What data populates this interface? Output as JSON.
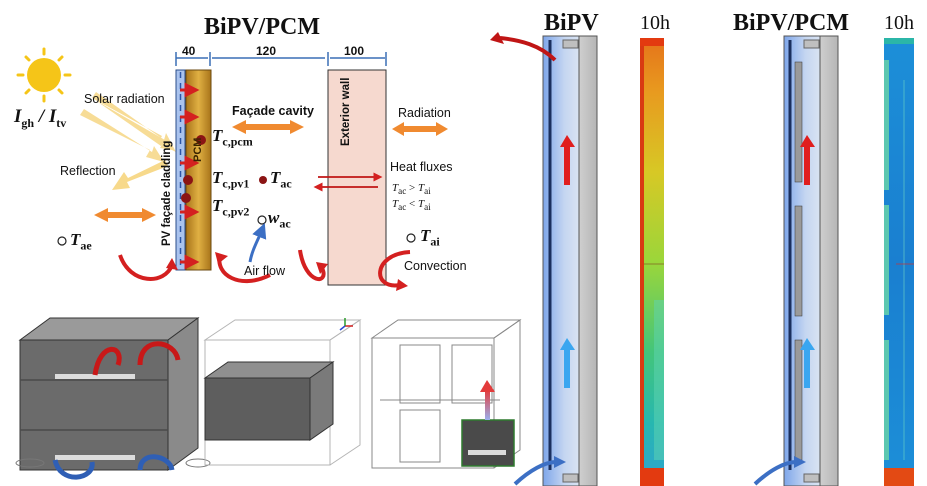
{
  "titles": {
    "left": "BiPV/PCM",
    "middle": "BiPV",
    "middle_time": "10h",
    "right": "BiPV/PCM",
    "right_time": "10h"
  },
  "dimensions": {
    "d1": "40",
    "d2": "120",
    "d3": "100"
  },
  "labels": {
    "solar_radiation": "Solar radiation",
    "facade_cavity": "Façade cavity",
    "radiation": "Radiation",
    "reflection": "Reflection",
    "heat_fluxes": "Heat fluxes",
    "air_flow": "Air flow",
    "convection": "Convection",
    "pcm": "PCM",
    "pv_cladding": "PV façade cladding",
    "exterior_wall": "Exterior wall"
  },
  "symbols": {
    "irradiance_main": "I",
    "irradiance_sub1": "gh",
    "irradiance_sep": " / ",
    "irradiance_sub2": "tv",
    "tcpcm_main": "T",
    "tcpcm_sub": "c,pcm",
    "tcpv1_main": "T",
    "tcpv1_sub": "c,pv1",
    "tcpv2_main": "T",
    "tcpv2_sub": "c,pv2",
    "tac_main": "T",
    "tac_sub": "ac",
    "wac_main": "w",
    "wac_sub": "ac",
    "tae_main": "T",
    "tae_sub": "ae",
    "tai_main": "T",
    "tai_sub": "ai",
    "cond1_a": "T",
    "cond1_a_sub": "ac",
    "cond1_op": " > ",
    "cond1_b": "T",
    "cond1_b_sub": "ai",
    "cond2_a": "T",
    "cond2_a_sub": "ac",
    "cond2_op": " < ",
    "cond2_b": "T",
    "cond2_b_sub": "ai"
  },
  "colors": {
    "pcm": "#c8962a",
    "wall": "#f6d9cf",
    "cavity_blue": "#aac3ee",
    "arrow_red": "#d42020",
    "arrow_blue": "#2f9ee8",
    "arrow_orange": "#f08a30",
    "sun": "#f5c518"
  }
}
